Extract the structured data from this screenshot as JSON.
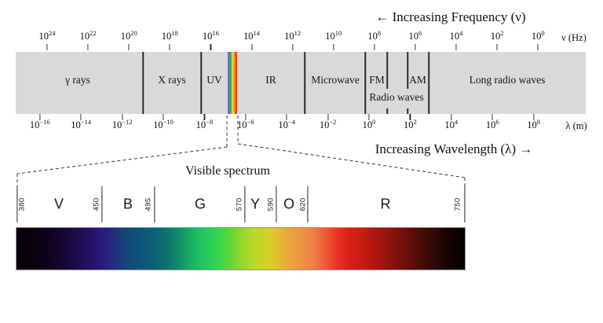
{
  "labels": {
    "increasing_frequency": "← Increasing Frequency (ν)",
    "increasing_wavelength": "Increasing Wavelength (λ) →",
    "frequency_unit": "ν (Hz)",
    "wavelength_unit": "λ (m)",
    "visible_title": "Visible spectrum"
  },
  "frequency_axis": {
    "base": "10",
    "exponents": [
      "24",
      "22",
      "20",
      "18",
      "16",
      "14",
      "12",
      "10",
      "8",
      "6",
      "4",
      "2",
      "0"
    ]
  },
  "wavelength_axis": {
    "base": "10",
    "exponents": [
      "−16",
      "−14",
      "−12",
      "−10",
      "−8",
      "−6",
      "−4",
      "−2",
      "0",
      "2",
      "4",
      "6",
      "8"
    ]
  },
  "band": {
    "regions": [
      "γ rays",
      "X rays",
      "UV",
      "IR",
      "Microwave",
      "FM",
      "AM",
      "Long radio waves"
    ],
    "sub_label": "Radio waves"
  },
  "visible_spectrum": {
    "wavelength_marks": [
      "380",
      "450",
      "495",
      "570",
      "590",
      "620",
      "750"
    ],
    "color_letters": [
      "V",
      "B",
      "G",
      "Y",
      "O",
      "R"
    ]
  },
  "colors": {
    "band_bg": "#d9d9d9",
    "divider": "#2b2b2b",
    "strip_gradient": [
      {
        "p": 0,
        "c": "#4e7ccc"
      },
      {
        "p": 16,
        "c": "#4e7ccc"
      },
      {
        "p": 32,
        "c": "#50a83c"
      },
      {
        "p": 46,
        "c": "#b8cc30"
      },
      {
        "p": 56,
        "c": "#f0e02c"
      },
      {
        "p": 70,
        "c": "#f59a1e"
      },
      {
        "p": 85,
        "c": "#ee4e1a"
      },
      {
        "p": 100,
        "c": "#e8361c"
      }
    ],
    "spectrum_gradient": [
      {
        "p": 0,
        "c": "#060008"
      },
      {
        "p": 5,
        "c": "#0b0114"
      },
      {
        "p": 10,
        "c": "#150530"
      },
      {
        "p": 14,
        "c": "#1d0c4e"
      },
      {
        "p": 17,
        "c": "#251468"
      },
      {
        "p": 19.5,
        "c": "#2a1c82"
      },
      {
        "p": 22,
        "c": "#20307e"
      },
      {
        "p": 25,
        "c": "#104a78"
      },
      {
        "p": 28,
        "c": "#0e5578"
      },
      {
        "p": 31,
        "c": "#0d6277"
      },
      {
        "p": 33,
        "c": "#0e6e70"
      },
      {
        "p": 36,
        "c": "#108c68"
      },
      {
        "p": 40,
        "c": "#1cbc60"
      },
      {
        "p": 44,
        "c": "#2ad455"
      },
      {
        "p": 47,
        "c": "#52d63a"
      },
      {
        "p": 50,
        "c": "#8ed62c"
      },
      {
        "p": 53,
        "c": "#bcd828"
      },
      {
        "p": 57,
        "c": "#dcca2a"
      },
      {
        "p": 60,
        "c": "#e6ae38"
      },
      {
        "p": 63,
        "c": "#ec9642"
      },
      {
        "p": 66,
        "c": "#f08048"
      },
      {
        "p": 69,
        "c": "#ee5a38"
      },
      {
        "p": 71.5,
        "c": "#e83424"
      },
      {
        "p": 74,
        "c": "#dc2018"
      },
      {
        "p": 78,
        "c": "#c01a10"
      },
      {
        "p": 85.5,
        "c": "#78120a"
      },
      {
        "p": 92,
        "c": "#380a04"
      },
      {
        "p": 97,
        "c": "#120302"
      },
      {
        "p": 100,
        "c": "#050101"
      }
    ]
  }
}
